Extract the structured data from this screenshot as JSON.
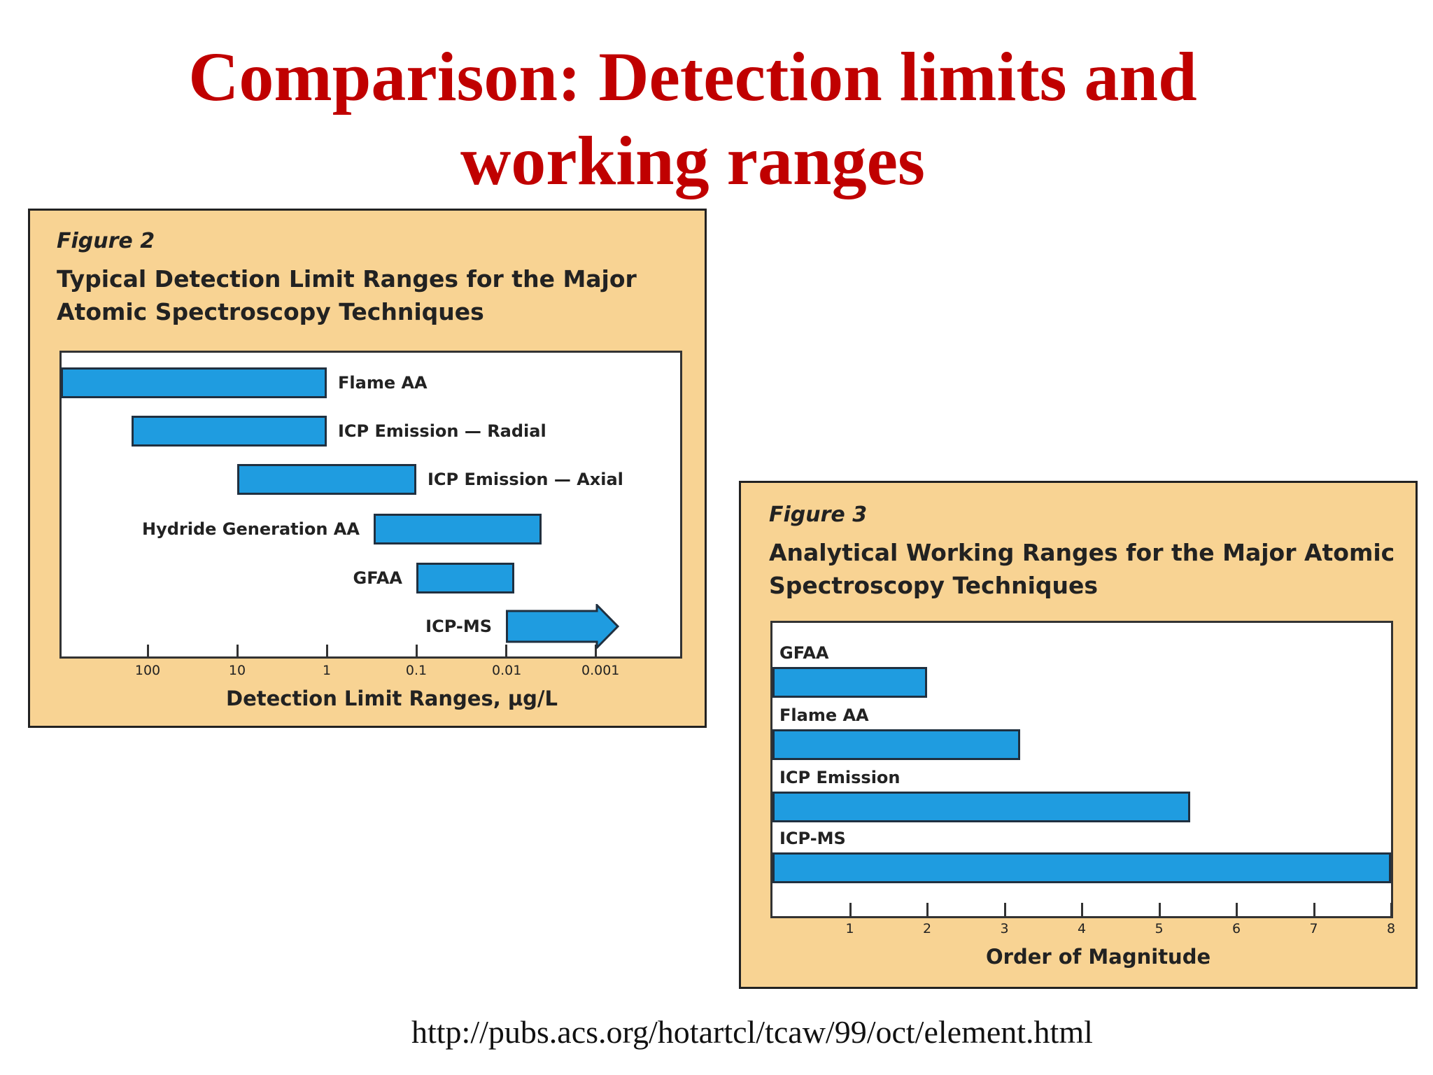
{
  "slide": {
    "title": "Comparison: Detection limits and working ranges",
    "source": "http://pubs.acs.org/hotartcl/tcaw/99/oct/element.html"
  },
  "figure2": {
    "label": "Figure 2",
    "title_line1": "Typical Detection Limit Ranges for the Major",
    "title_line2": "Atomic Spectroscopy Techniques"
  },
  "figure3": {
    "label": "Figure 3",
    "title_line1": "Analytical Working Ranges for the Major Atomic",
    "title_line2": "Spectroscopy Techniques"
  },
  "colors": {
    "title_red": "#c00000",
    "panel_bg": "#f8d393",
    "bar_blue": "#1f9ce0"
  },
  "chart_data": [
    {
      "type": "bar",
      "orientation": "horizontal-range",
      "title": "Typical Detection Limit Ranges for the Major Atomic Spectroscopy Techniques",
      "xlabel": "Detection Limit Ranges, µg/L",
      "x_scale": "log",
      "x_reversed": true,
      "x_ticks": [
        100,
        10,
        1,
        0.1,
        0.01,
        0.001
      ],
      "x_tick_labels": [
        "100",
        "10",
        "1",
        "0.1",
        "0.01",
        "0.001"
      ],
      "grid": false,
      "series": [
        {
          "name": "Flame AA",
          "from": 1000,
          "to": 1
        },
        {
          "name": "ICP Emission — Radial",
          "from": 150,
          "to": 1
        },
        {
          "name": "ICP Emission — Axial",
          "from": 10,
          "to": 0.1
        },
        {
          "name": "Hydride Generation AA",
          "from": 0.3,
          "to": 0.004
        },
        {
          "name": "GFAA",
          "from": 0.1,
          "to": 0.008
        },
        {
          "name": "ICP-MS",
          "from": 0.01,
          "to": 0.001,
          "open_ended": true
        }
      ]
    },
    {
      "type": "bar",
      "orientation": "horizontal",
      "title": "Analytical Working Ranges for the Major Atomic Spectroscopy Techniques",
      "xlabel": "Order of Magnitude",
      "xlim": [
        0,
        8
      ],
      "x_ticks": [
        1,
        2,
        3,
        4,
        5,
        6,
        7,
        8
      ],
      "x_tick_labels": [
        "1",
        "2",
        "3",
        "4",
        "5",
        "6",
        "7",
        "8"
      ],
      "grid": false,
      "categories": [
        "GFAA",
        "Flame AA",
        "ICP Emission",
        "ICP-MS"
      ],
      "values": [
        2,
        3.2,
        5.4,
        8
      ]
    }
  ]
}
